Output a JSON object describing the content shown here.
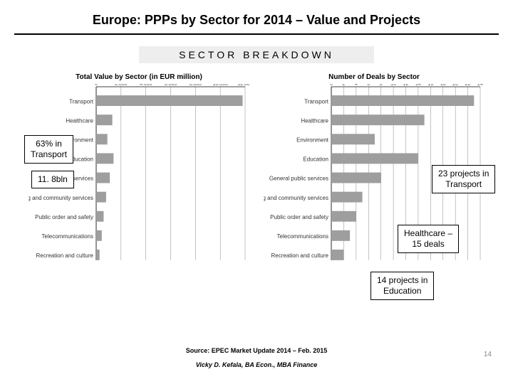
{
  "title": "Europe: PPPs by Sector for 2014 – Value and Projects",
  "subtitle": "SECTOR   BREAKDOWN",
  "value_chart": {
    "type": "bar-horizontal",
    "title": "Total Value by Sector (in EUR million)",
    "categories": [
      "Transport",
      "Healthcare",
      "Environment",
      "Education",
      "General public services",
      "Housing and community services",
      "Public order and safety",
      "Telecommunications",
      "Recreation and culture"
    ],
    "values": [
      11800,
      1300,
      900,
      1400,
      1100,
      800,
      600,
      450,
      270
    ],
    "xlim": [
      0,
      12000
    ],
    "xtick_step": 2000,
    "bar_color": "#9e9e9e",
    "grid_color": "#cccccc",
    "label_fontsize": 8,
    "tick_fontsize": 7
  },
  "deals_chart": {
    "type": "bar-horizontal",
    "title": "Number of Deals by Sector",
    "categories": [
      "Transport",
      "Healthcare",
      "Environment",
      "Education",
      "General public services",
      "Housing and community services",
      "Public order and safety",
      "Telecommunications",
      "Recreation and culture"
    ],
    "values": [
      23,
      15,
      7,
      14,
      8,
      5,
      4,
      3,
      2
    ],
    "xlim": [
      0,
      24
    ],
    "xtick_step": 2,
    "bar_color": "#9e9e9e",
    "grid_color": "#cccccc",
    "label_fontsize": 8,
    "tick_fontsize": 7
  },
  "callouts": {
    "a": "63% in\nTransport",
    "b": "11. 8bln",
    "c": "23 projects in\nTransport",
    "d": "Healthcare –\n15 deals",
    "e": "14 projects in\nEducation"
  },
  "source": "Source: EPEC Market Update 2014 – Feb. 2015",
  "author": "Vicky D. Kefala, BA Econ., MBA Finance",
  "page_number": "14"
}
